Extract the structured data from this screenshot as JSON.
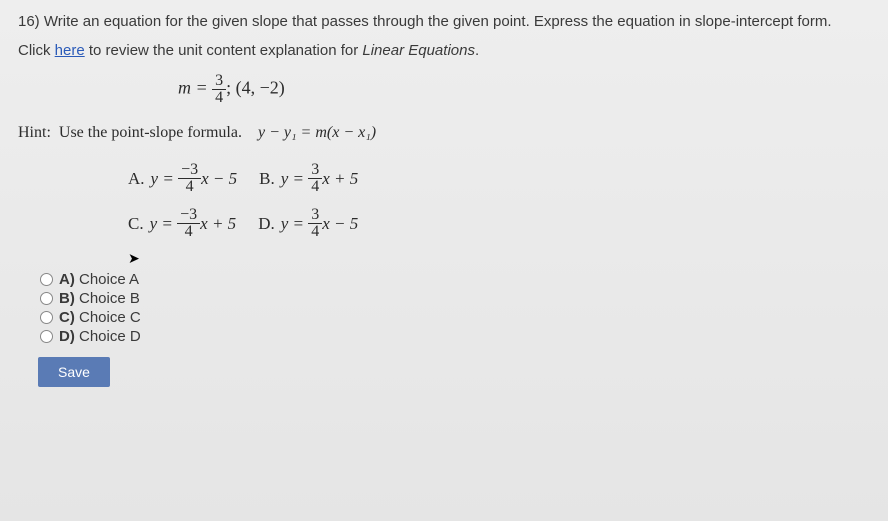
{
  "question": {
    "number": "16)",
    "text": "Write an equation for the given slope that passes through the given point.  Express the equation in slope-intercept form."
  },
  "instruction": {
    "prefix": "Click ",
    "link": "here",
    "mid": " to review the unit content explanation for ",
    "topic": "Linear Equations",
    "suffix": "."
  },
  "given": {
    "m_prefix": "m =",
    "m_num": "3",
    "m_den": "4",
    "point": "; (4, −2)"
  },
  "hint": {
    "label": "Hint:",
    "text": "Use the point-slope formula.",
    "formula": "y − y₁ = m(x − x₁)"
  },
  "math_choices": {
    "A": {
      "label": "A.",
      "lhs": "y =",
      "num": "−3",
      "den": "4",
      "tail": "x − 5"
    },
    "B": {
      "label": "B.",
      "lhs": "y =",
      "num": "3",
      "den": "4",
      "tail": "x + 5"
    },
    "C": {
      "label": "C.",
      "lhs": "y =",
      "num": "−3",
      "den": "4",
      "tail": "x + 5"
    },
    "D": {
      "label": "D.",
      "lhs": "y =",
      "num": "3",
      "den": "4",
      "tail": "x − 5"
    }
  },
  "radios": {
    "A": {
      "letter": "A)",
      "text": " Choice A"
    },
    "B": {
      "letter": "B)",
      "text": " Choice B"
    },
    "C": {
      "letter": "C)",
      "text": " Choice C"
    },
    "D": {
      "letter": "D)",
      "text": " Choice D"
    }
  },
  "save_label": "Save",
  "cursor_glyph": "➤",
  "colors": {
    "text": "#3a3a3a",
    "link": "#2a5ab8",
    "button_bg": "#5a7bb5",
    "button_fg": "#ffffff",
    "page_bg": "#e8e8e8"
  },
  "fonts": {
    "ui": "Arial",
    "math": "Times New Roman",
    "question_size_pt": 11,
    "math_size_pt": 13
  }
}
